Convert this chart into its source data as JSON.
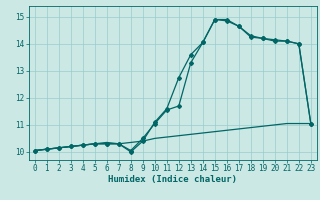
{
  "title": "",
  "xlabel": "Humidex (Indice chaleur)",
  "bg_color": "#cce8e4",
  "grid_color": "#99cccc",
  "line_color": "#006666",
  "xlim": [
    -0.5,
    23.5
  ],
  "ylim": [
    9.7,
    15.4
  ],
  "line1_x": [
    0,
    1,
    2,
    3,
    4,
    5,
    6,
    7,
    8,
    9,
    10,
    11,
    12,
    13,
    14,
    15,
    16,
    17,
    18,
    19,
    20,
    21,
    22,
    23
  ],
  "line1_y": [
    10.05,
    10.1,
    10.15,
    10.2,
    10.25,
    10.3,
    10.35,
    10.3,
    10.35,
    10.4,
    10.5,
    10.55,
    10.6,
    10.65,
    10.7,
    10.75,
    10.8,
    10.85,
    10.9,
    10.95,
    11.0,
    11.05,
    11.05,
    11.05
  ],
  "line2_x": [
    0,
    1,
    2,
    3,
    4,
    5,
    6,
    7,
    8,
    9,
    10,
    11,
    12,
    13,
    14,
    15,
    16,
    17,
    18,
    19,
    20,
    21,
    22,
    23
  ],
  "line2_y": [
    10.05,
    10.1,
    10.15,
    10.2,
    10.25,
    10.3,
    10.3,
    10.3,
    10.0,
    10.4,
    11.1,
    11.6,
    12.75,
    13.6,
    14.05,
    14.9,
    14.9,
    14.65,
    14.3,
    14.2,
    14.15,
    14.1,
    14.0,
    11.05
  ],
  "line3_x": [
    0,
    1,
    2,
    3,
    4,
    5,
    6,
    7,
    8,
    9,
    10,
    11,
    12,
    13,
    14,
    15,
    16,
    17,
    18,
    19,
    20,
    21,
    22,
    23
  ],
  "line3_y": [
    10.05,
    10.1,
    10.15,
    10.2,
    10.25,
    10.3,
    10.3,
    10.3,
    10.05,
    10.5,
    11.05,
    11.55,
    11.7,
    13.3,
    14.05,
    14.9,
    14.85,
    14.65,
    14.25,
    14.2,
    14.1,
    14.1,
    14.0,
    11.05
  ],
  "xticks": [
    0,
    1,
    2,
    3,
    4,
    5,
    6,
    7,
    8,
    9,
    10,
    11,
    12,
    13,
    14,
    15,
    16,
    17,
    18,
    19,
    20,
    21,
    22,
    23
  ],
  "yticks": [
    10,
    11,
    12,
    13,
    14,
    15
  ],
  "marker_size": 2.0,
  "line_width": 0.9
}
